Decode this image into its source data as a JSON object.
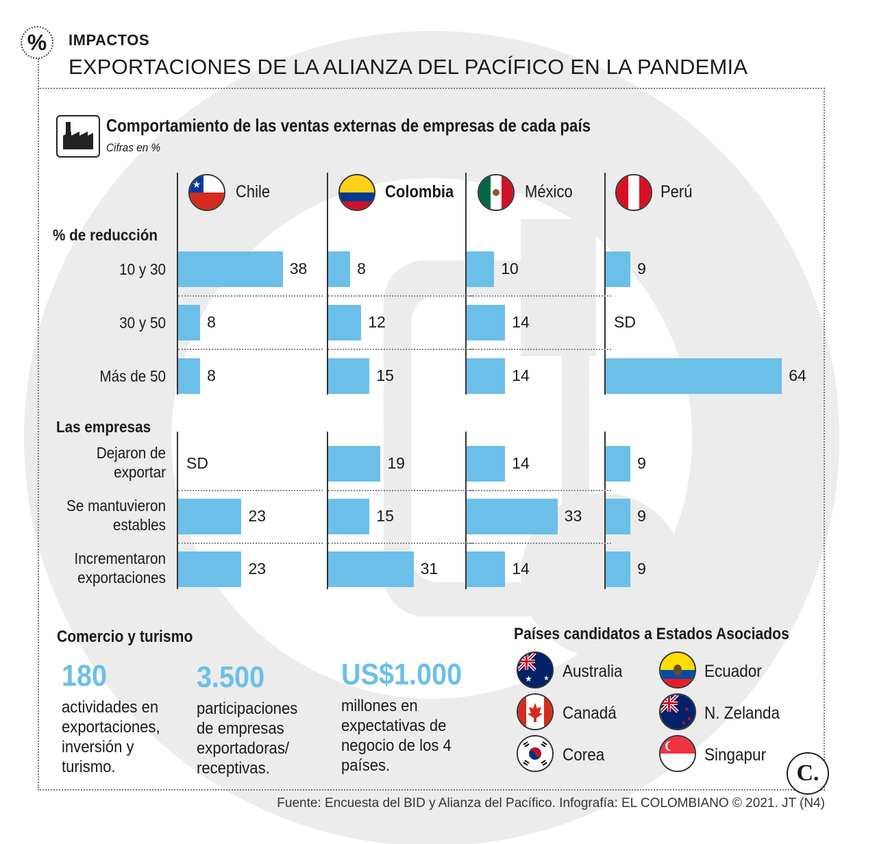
{
  "header": {
    "kicker": "IMPACTOS",
    "title": "EXPORTACIONES DE LA ALIANZA DEL PACÍFICO EN LA PANDEMIA",
    "badge_symbol": "%"
  },
  "chart_data": {
    "type": "bar",
    "title": "Comportamiento de las ventas externas de empresas de cada país",
    "subtitle": "Cifras en %",
    "countries": [
      "Chile",
      "Colombia",
      "México",
      "Perú"
    ],
    "highlighted_country": "Colombia",
    "bar_color": "#6cbfe8",
    "groups": [
      {
        "name": "% de reducción",
        "rows": [
          {
            "label": "10 y 30",
            "values": [
              38,
              8,
              10,
              9
            ]
          },
          {
            "label": "30 y 50",
            "values": [
              8,
              12,
              14,
              "SD"
            ]
          },
          {
            "label": "Más de 50",
            "values": [
              8,
              15,
              14,
              64
            ]
          }
        ]
      },
      {
        "name": "Las empresas",
        "rows": [
          {
            "label": "Dejaron de exportar",
            "values": [
              "SD",
              19,
              14,
              9
            ]
          },
          {
            "label": "Se mantuvieron estables",
            "values": [
              23,
              15,
              33,
              9
            ]
          },
          {
            "label": "Incrementaron exportaciones",
            "values": [
              23,
              31,
              14,
              9
            ]
          }
        ]
      }
    ]
  },
  "commerce": {
    "title": "Comercio y turismo",
    "stats": [
      {
        "value": "180",
        "desc": "actividades en exportaciones, inversión y turismo."
      },
      {
        "value": "3.500",
        "desc": "participaciones de empresas exportadoras/ receptivas."
      },
      {
        "value": "US$1.000",
        "desc": "millones en expectativas de negocio de los 4 países."
      }
    ]
  },
  "candidates": {
    "title": "Países candidatos a Estados Asociados",
    "countries": [
      "Australia",
      "Ecuador",
      "Canadá",
      "N. Zelanda",
      "Corea",
      "Singapur"
    ]
  },
  "logo": "C.",
  "source": "Fuente: Encuesta del BID y Alianza del Pacífico. Infografía: EL COLOMBIANO © 2021. JT (N4)"
}
